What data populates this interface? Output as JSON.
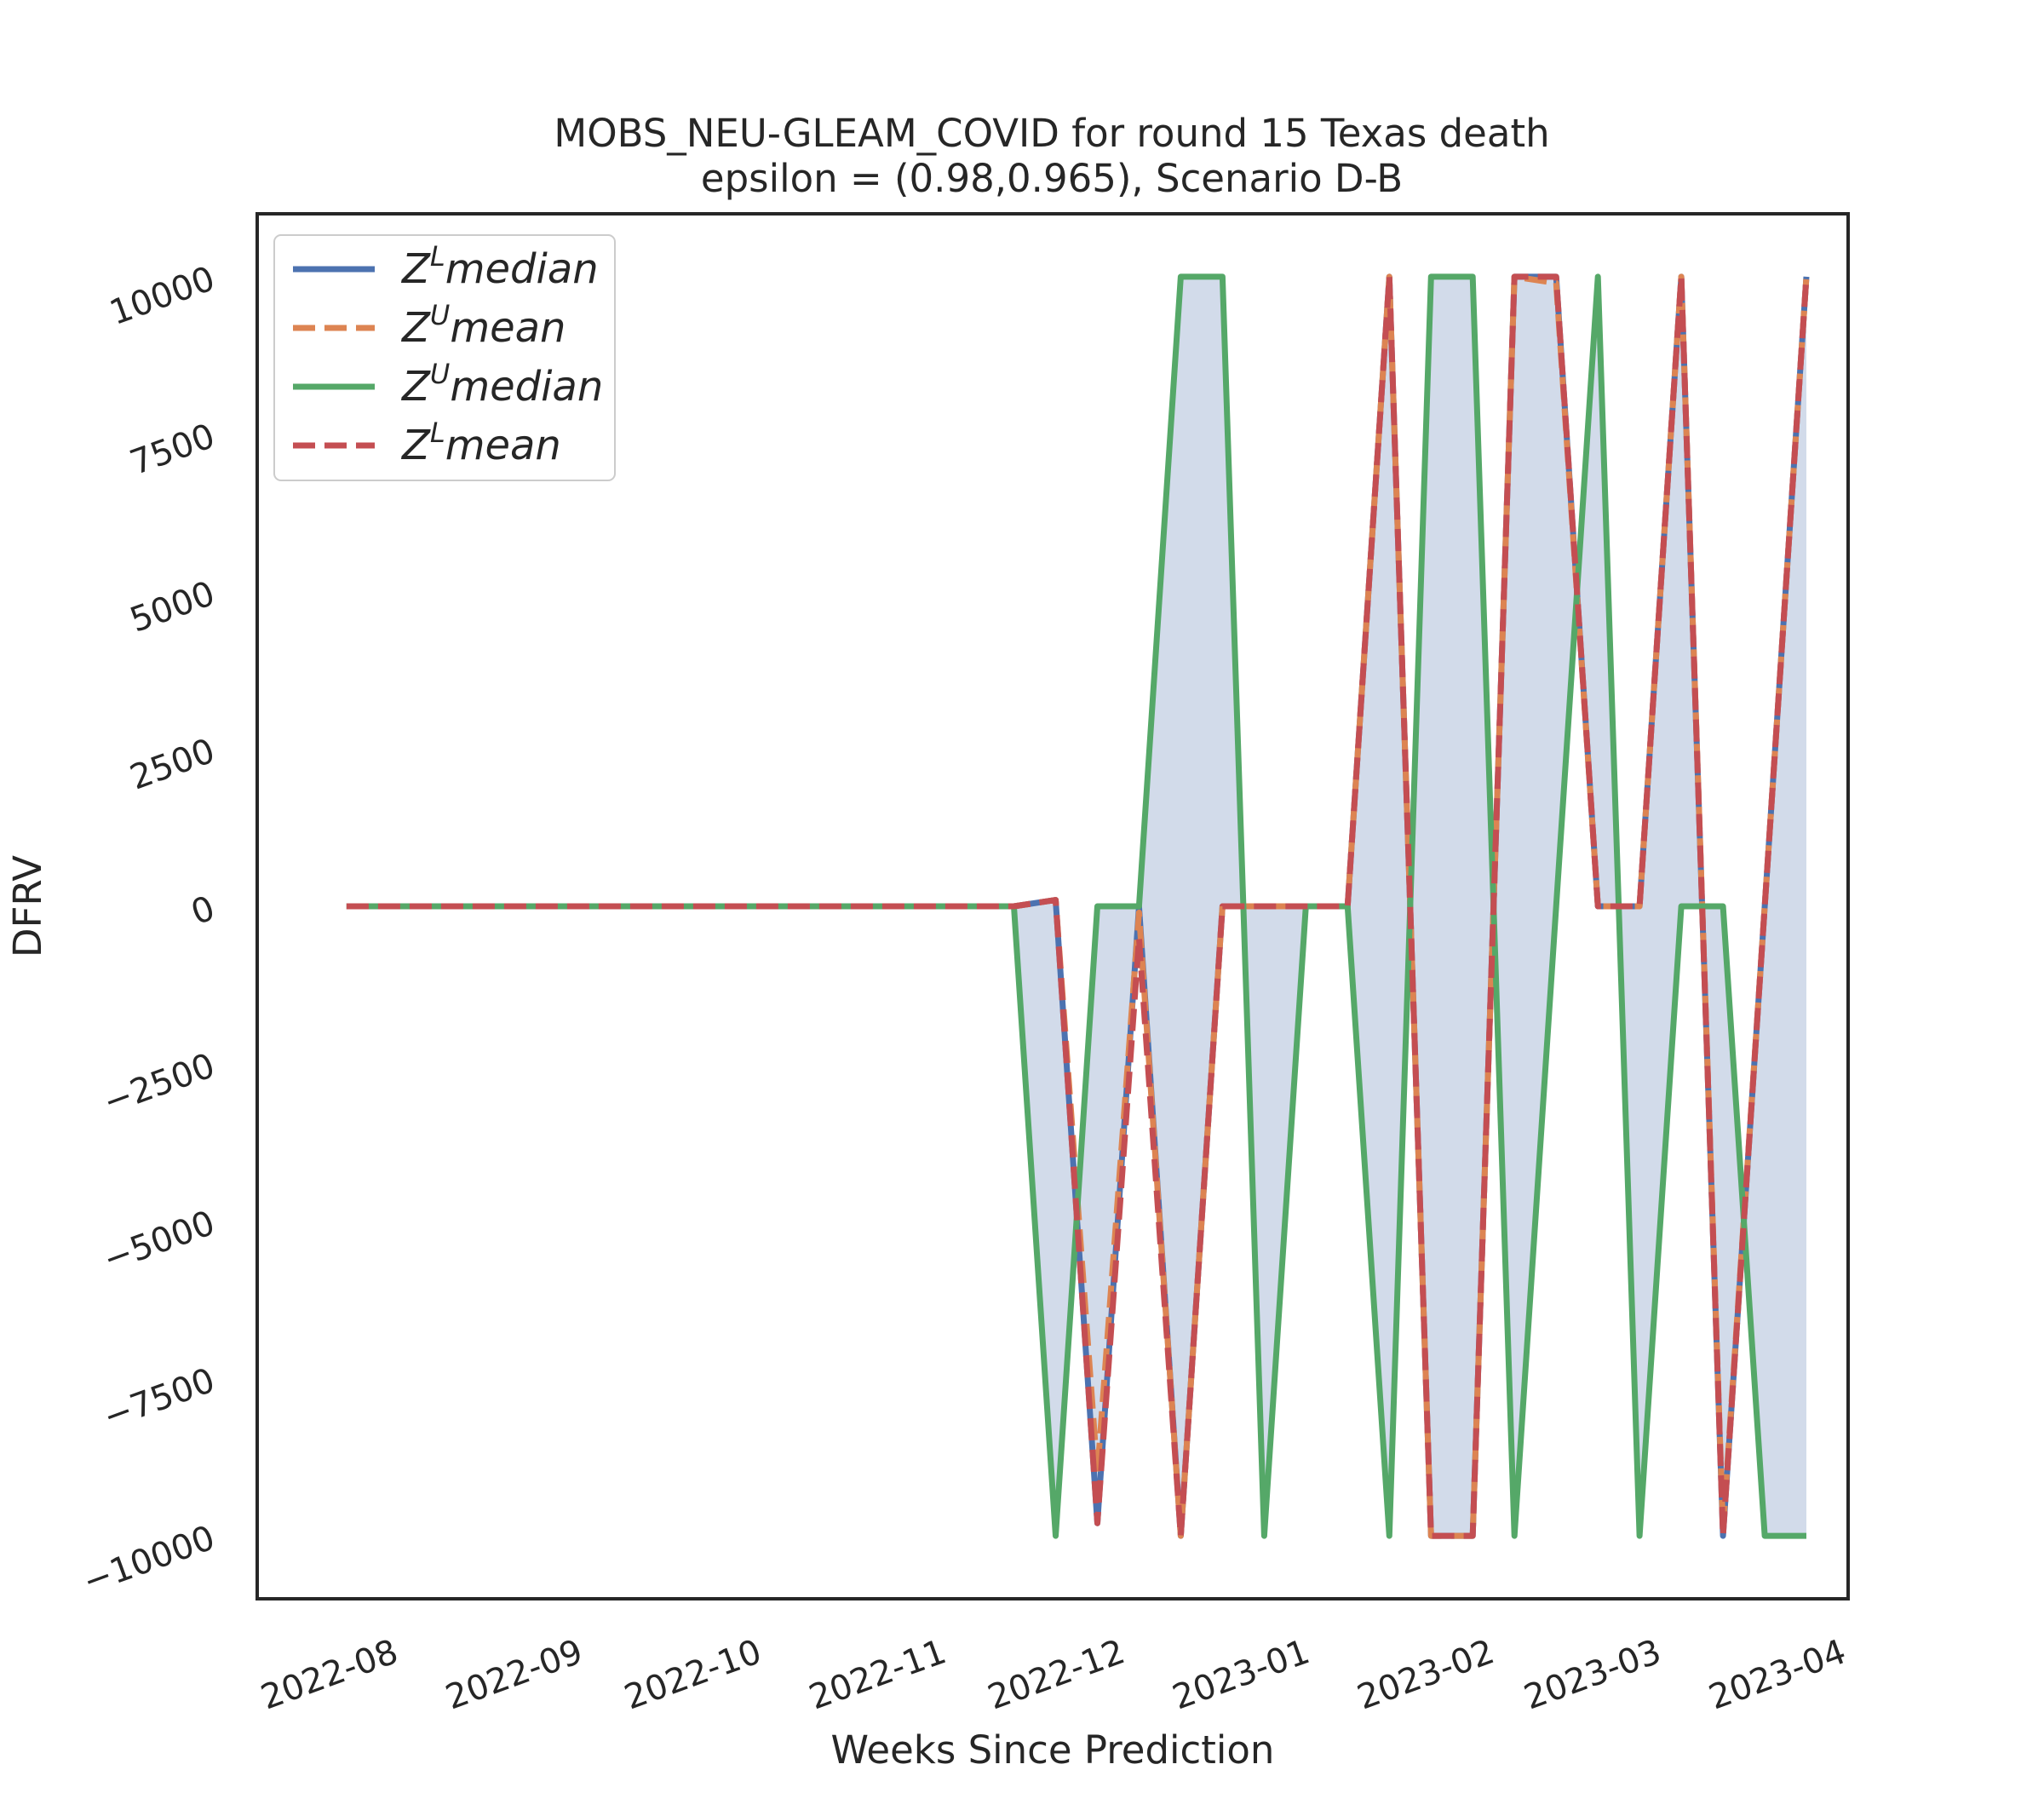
{
  "chart_data": {
    "type": "line",
    "title_lines": [
      "MOBS_NEU-GLEAM_COVID for round 15 Texas  death",
      "epsilon = (0.98,0.965), Scenario D-B"
    ],
    "xlabel": "Weeks Since Prediction",
    "ylabel": "DFRV",
    "ylim": [
      -11000,
      11000
    ],
    "yticks": [
      -10000,
      -7500,
      -5000,
      -2500,
      0,
      2500,
      5000,
      7500,
      10000
    ],
    "ytick_labels": [
      "−10000",
      "−7500",
      "−5000",
      "−2500",
      "0",
      "2500",
      "5000",
      "7500",
      "10000"
    ],
    "xlim": [
      "2022-07-08",
      "2023-04-01"
    ],
    "xticks": [
      "2022-08-01",
      "2022-09-01",
      "2022-10-01",
      "2022-11-01",
      "2022-12-01",
      "2023-01-01",
      "2023-02-01",
      "2023-03-01",
      "2023-04-01"
    ],
    "xtick_labels": [
      "2022-08",
      "2022-09",
      "2022-10",
      "2022-11",
      "2022-12",
      "2023-01",
      "2023-02",
      "2023-03",
      "2023-04"
    ],
    "grid": false,
    "legend_position": "upper-left",
    "fill_between": {
      "lower": "Z^L median",
      "upper": "Z^U median",
      "color": "#d2dbea"
    },
    "x": [
      "2022-07-23",
      "2022-07-30",
      "2022-08-06",
      "2022-08-13",
      "2022-08-20",
      "2022-08-27",
      "2022-09-03",
      "2022-09-10",
      "2022-09-17",
      "2022-09-24",
      "2022-10-01",
      "2022-10-08",
      "2022-10-15",
      "2022-10-22",
      "2022-10-29",
      "2022-11-05",
      "2022-11-12",
      "2022-11-19",
      "2022-11-26",
      "2022-12-03",
      "2022-12-10",
      "2022-12-17",
      "2022-12-24",
      "2022-12-31",
      "2023-01-07",
      "2023-01-14",
      "2023-01-21",
      "2023-01-28",
      "2023-02-04",
      "2023-02-11",
      "2023-02-18",
      "2023-02-25",
      "2023-03-04",
      "2023-03-11",
      "2023-03-18",
      "2023-03-25"
    ],
    "series": [
      {
        "name": "Z^L median",
        "legend_base": "Z",
        "legend_sup": "L",
        "legend_rest": "median",
        "color": "#4c72b0",
        "dash": "solid",
        "values": [
          0,
          0,
          0,
          0,
          0,
          0,
          0,
          0,
          0,
          0,
          0,
          0,
          0,
          0,
          0,
          0,
          0,
          100,
          -9800,
          0,
          -10000,
          0,
          0,
          0,
          0,
          10000,
          -10000,
          -10000,
          10000,
          10000,
          0,
          0,
          10000,
          -10000,
          0,
          10000
        ]
      },
      {
        "name": "Z^U mean",
        "legend_base": "Z",
        "legend_sup": "U",
        "legend_rest": "mean",
        "color": "#dd8452",
        "dash": "dashed",
        "values": [
          0,
          0,
          0,
          0,
          0,
          0,
          0,
          0,
          0,
          0,
          0,
          0,
          0,
          0,
          0,
          0,
          0,
          100,
          -9000,
          -100,
          -10000,
          0,
          0,
          0,
          0,
          10000,
          -10000,
          -10000,
          10000,
          9900,
          0,
          0,
          10000,
          -9900,
          0,
          10000
        ]
      },
      {
        "name": "Z^U median",
        "legend_base": "Z",
        "legend_sup": "U",
        "legend_rest": "median",
        "color": "#55a868",
        "dash": "solid",
        "values": [
          0,
          0,
          0,
          0,
          0,
          0,
          0,
          0,
          0,
          0,
          0,
          0,
          0,
          0,
          0,
          0,
          0,
          -10000,
          0,
          0,
          10000,
          10000,
          -10000,
          0,
          0,
          -10000,
          10000,
          10000,
          -10000,
          0,
          10000,
          -10000,
          0,
          0,
          -10000,
          -10000
        ]
      },
      {
        "name": "Z^L mean",
        "legend_base": "Z",
        "legend_sup": "L",
        "legend_rest": "mean",
        "color": "#c44e52",
        "dash": "dashed",
        "values": [
          0,
          0,
          0,
          0,
          0,
          0,
          0,
          0,
          0,
          0,
          0,
          0,
          0,
          0,
          0,
          0,
          0,
          100,
          -9800,
          -500,
          -10000,
          0,
          0,
          0,
          0,
          10000,
          -10000,
          -10000,
          10000,
          10000,
          0,
          0,
          10000,
          -10000,
          0,
          10000
        ]
      }
    ]
  }
}
